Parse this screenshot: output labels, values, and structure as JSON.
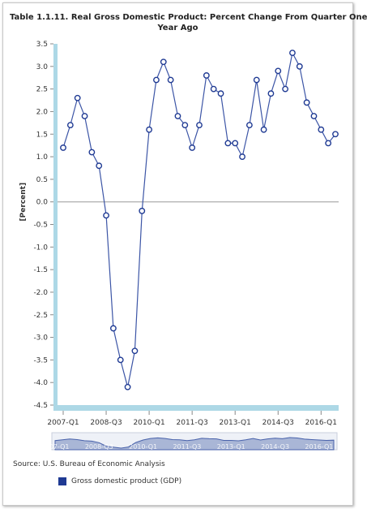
{
  "chart_data": {
    "type": "line",
    "title_lines": [
      "Table 1.1.11. Real Gross Domestic Product: Percent Change From Quarter One",
      "Year Ago"
    ],
    "ylabel": "[Percent]",
    "ylim": [
      -4.5,
      3.5
    ],
    "ytick_labels": [
      "3.5",
      "3.0",
      "2.5",
      "2.0",
      "1.5",
      "1.0",
      "0.5",
      "0.0",
      "-0.5",
      "-1.0",
      "-1.5",
      "-2.0",
      "-2.5",
      "-3.0",
      "-3.5",
      "-4.0",
      "-4.5"
    ],
    "x_tick_labels": [
      "2007-Q1",
      "2008-Q3",
      "2010-Q1",
      "2011-Q3",
      "2013-Q1",
      "2014-Q3",
      "2016-Q1"
    ],
    "series": [
      {
        "values": [
          1.2,
          1.7,
          2.3,
          1.9,
          1.1,
          0.8,
          -0.3,
          -2.8,
          -3.5,
          -4.1,
          -3.3,
          -0.2,
          1.6,
          2.7,
          3.1,
          2.7,
          1.9,
          1.7,
          1.2,
          1.7,
          2.8,
          2.5,
          2.4,
          1.3,
          1.3,
          1.0,
          1.7,
          2.7,
          1.6,
          2.4,
          2.9,
          2.5,
          3.3,
          3.0,
          2.2,
          1.9,
          1.6,
          1.3,
          1.5
        ]
      }
    ],
    "colors": {
      "line": "#3c55a6",
      "axis_bar": "#add8e6",
      "marker_fill": "#ffffff",
      "marker_stroke": "#1f3a93"
    },
    "grid": false
  },
  "source": "Source: U.S. Bureau of Economic Analysis",
  "legend": {
    "label": "Gross domestic product (GDP)",
    "color": "#1f3a93"
  }
}
